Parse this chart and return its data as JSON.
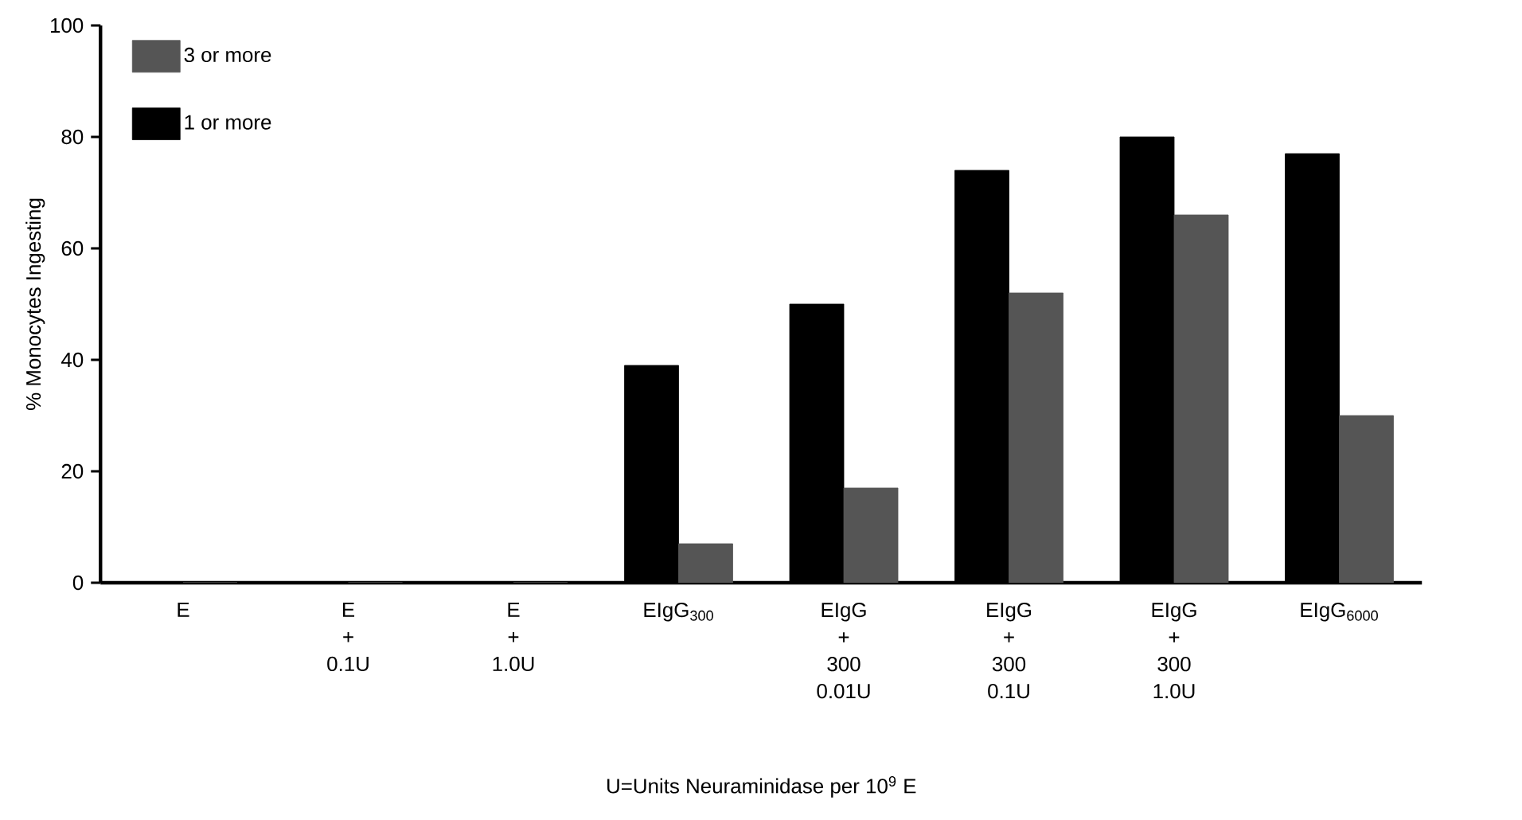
{
  "chart_data": {
    "type": "bar",
    "xlabel": "U=Units Neuraminidase per 10$^{9}$ E",
    "ylabel": "% Monocytes Ingesting",
    "categories": [
      "E",
      "E + 0.1U",
      "E + 1.0U",
      "EIgG$_{300}$",
      "EIgG + 300 0.01U",
      "EIgG + 300 0.1U",
      "EIgG + 300 1.0U",
      "EIgG$_{6000}$"
    ],
    "series": [
      {
        "name": "1 or more",
        "color": "#000000",
        "values": [
          0,
          0,
          0,
          39,
          50,
          74,
          80,
          77
        ]
      },
      {
        "name": "3 or more",
        "color": "#555555",
        "values": [
          0,
          0,
          0,
          7,
          17,
          52,
          66,
          30
        ]
      }
    ],
    "ylim": [
      0,
      100
    ],
    "yticks": [
      0,
      20,
      40,
      60,
      80,
      100
    ],
    "grid": false,
    "legend": "top left"
  }
}
